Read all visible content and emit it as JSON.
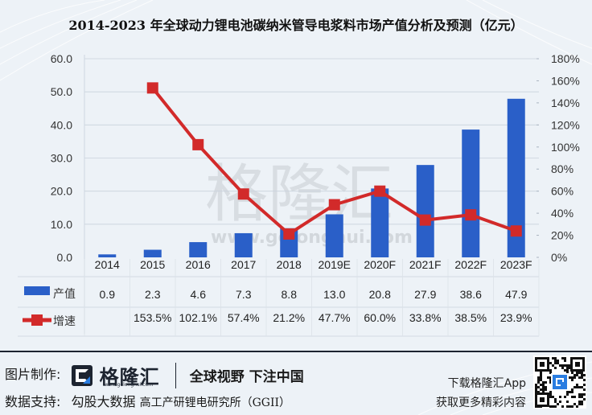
{
  "title": "2014-2023 年全球动力锂电池碳纳米管导电浆料市场产值分析及预测（亿元）",
  "colors": {
    "bar": "#2a5fc8",
    "line": "#d22a2a",
    "background": "#edf2f7",
    "grid": "#c9d2dc"
  },
  "chart_data": {
    "type": "bar+line",
    "title": "2014-2023 年全球动力锂电池碳纳米管导电浆料市场产值分析及预测（亿元）",
    "categories": [
      "2014",
      "2015",
      "2016",
      "2017",
      "2018",
      "2019E",
      "2020F",
      "2021F",
      "2022F",
      "2023F"
    ],
    "series": [
      {
        "name": "产值",
        "type": "bar",
        "axis": "left",
        "values": [
          0.9,
          2.3,
          4.6,
          7.3,
          8.8,
          13.0,
          20.8,
          27.9,
          38.6,
          47.9
        ]
      },
      {
        "name": "增速",
        "type": "line",
        "axis": "right",
        "values": [
          null,
          153.5,
          102.1,
          57.4,
          21.2,
          47.7,
          60.0,
          33.8,
          38.5,
          23.9
        ],
        "unit": "%"
      }
    ],
    "y_left": {
      "ylim": [
        0,
        60
      ],
      "ticks": [
        "0.0",
        "10.0",
        "20.0",
        "30.0",
        "40.0",
        "50.0",
        "60.0"
      ]
    },
    "y_right": {
      "ylim": [
        0,
        180
      ],
      "ticks": [
        "0%",
        "20%",
        "40%",
        "60%",
        "80%",
        "100%",
        "120%",
        "140%",
        "160%",
        "180%"
      ]
    },
    "xlabel": "",
    "ylabel": "",
    "grid": true,
    "legend_position": "data-table-left"
  },
  "table": {
    "rows": [
      {
        "label": "产值",
        "cells": [
          "0.9",
          "2.3",
          "4.6",
          "7.3",
          "8.8",
          "13.0",
          "20.8",
          "27.9",
          "38.6",
          "47.9"
        ]
      },
      {
        "label": "增速",
        "cells": [
          "",
          "153.5%",
          "102.1%",
          "57.4%",
          "21.2%",
          "47.7%",
          "60.0%",
          "33.8%",
          "38.5%",
          "23.9%"
        ]
      }
    ]
  },
  "watermark": {
    "text": "格隆汇",
    "url": "www.gelonghui.com"
  },
  "footer": {
    "made_by_label": "图片制作:",
    "brand": "格隆汇",
    "brand_url": "www.gelonghui.com",
    "slogan": "全球视野 下注中国",
    "data_label": "数据支持:",
    "data_source_1": "勾股大数据",
    "data_source_2": "高工产研锂电研究所（GGII）",
    "app_line_1": "下载格隆汇App",
    "app_line_2": "获取更多精彩内容"
  }
}
